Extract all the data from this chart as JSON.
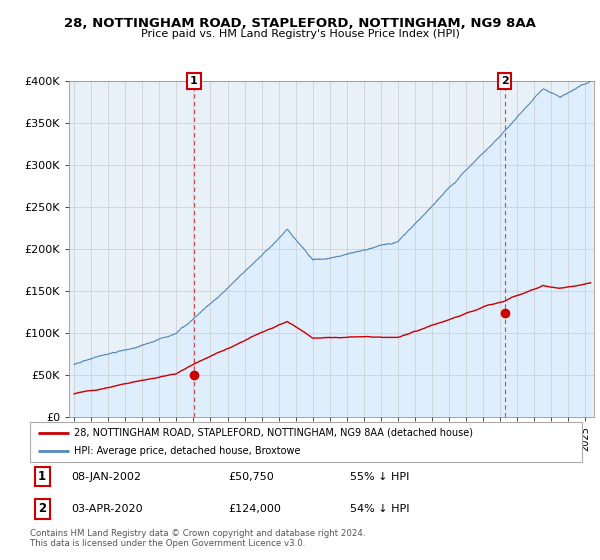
{
  "title": "28, NOTTINGHAM ROAD, STAPLEFORD, NOTTINGHAM, NG9 8AA",
  "subtitle": "Price paid vs. HM Land Registry's House Price Index (HPI)",
  "ylim": [
    0,
    400000
  ],
  "xlim_start": 1994.7,
  "xlim_end": 2025.5,
  "sale1_x": 2002.03,
  "sale1_y": 50750,
  "sale2_x": 2020.25,
  "sale2_y": 124000,
  "red_color": "#cc0000",
  "blue_color": "#5588bb",
  "blue_fill_color": "#ddeeff",
  "annotation_box_color": "#cc0000",
  "legend1": "28, NOTTINGHAM ROAD, STAPLEFORD, NOTTINGHAM, NG9 8AA (detached house)",
  "legend2": "HPI: Average price, detached house, Broxtowe",
  "footnote1": "Contains HM Land Registry data © Crown copyright and database right 2024.",
  "footnote2": "This data is licensed under the Open Government Licence v3.0.",
  "plot_bg": "#e8f0f8"
}
